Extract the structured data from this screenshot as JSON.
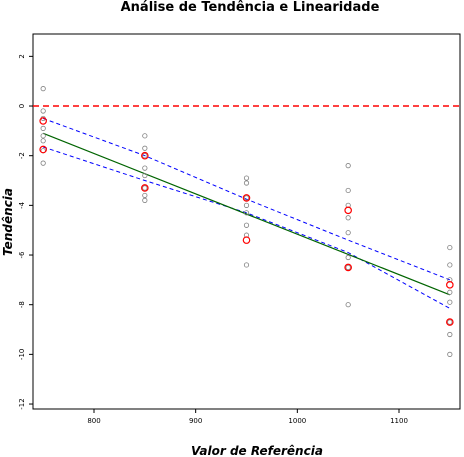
{
  "chart_data": {
    "type": "scatter",
    "title": "Análise de Tendência e Linearidade",
    "xlabel": "Valor de Referência",
    "ylabel": "Tendência",
    "xlim": [
      740,
      1160
    ],
    "ylim": [
      -12.2,
      2.9
    ],
    "x_ticks": [
      800,
      900,
      1000,
      1100
    ],
    "y_ticks": [
      2,
      0,
      -2,
      -4,
      -6,
      -8,
      -10,
      -12
    ],
    "x_tick_labels": [
      "800",
      "900",
      "1000",
      "1100"
    ],
    "y_tick_labels": [
      "2",
      "0",
      "-2",
      "-4",
      "-6",
      "-8",
      "-10",
      "-12"
    ],
    "grid": false,
    "reference_line": {
      "y": 0,
      "color": "#ff0000",
      "style": "dashed"
    },
    "fit_line": {
      "x": [
        750,
        1150
      ],
      "y": [
        -1.1,
        -7.6
      ],
      "color": "#006400"
    },
    "confidence_band": {
      "color": "#0000ff",
      "style": "dashed",
      "x": [
        750,
        850,
        950,
        1050,
        1150
      ],
      "upper": [
        -0.5,
        -2.0,
        -3.75,
        -5.4,
        -7.0
      ],
      "lower": [
        -1.65,
        -3.0,
        -4.3,
        -5.9,
        -8.15
      ]
    },
    "series": [
      {
        "color": "#808080",
        "marker": "circle",
        "points": [
          [
            750,
            0.7
          ],
          [
            750,
            -0.2
          ],
          [
            750,
            -0.5
          ],
          [
            750,
            -0.9
          ],
          [
            750,
            -1.2
          ],
          [
            750,
            -1.4
          ],
          [
            750,
            -1.8
          ],
          [
            750,
            -2.3
          ],
          [
            850,
            -1.2
          ],
          [
            850,
            -1.7
          ],
          [
            850,
            -2.0
          ],
          [
            850,
            -2.5
          ],
          [
            850,
            -2.8
          ],
          [
            850,
            -3.3
          ],
          [
            850,
            -3.6
          ],
          [
            850,
            -3.8
          ],
          [
            950,
            -2.9
          ],
          [
            950,
            -3.1
          ],
          [
            950,
            -3.7
          ],
          [
            950,
            -4.0
          ],
          [
            950,
            -4.3
          ],
          [
            950,
            -4.8
          ],
          [
            950,
            -5.2
          ],
          [
            950,
            -6.4
          ],
          [
            1050,
            -2.4
          ],
          [
            1050,
            -3.4
          ],
          [
            1050,
            -4.0
          ],
          [
            1050,
            -4.5
          ],
          [
            1050,
            -5.1
          ],
          [
            1050,
            -6.1
          ],
          [
            1050,
            -6.5
          ],
          [
            1050,
            -8.0
          ],
          [
            1150,
            -5.7
          ],
          [
            1150,
            -6.4
          ],
          [
            1150,
            -7.0
          ],
          [
            1150,
            -7.5
          ],
          [
            1150,
            -7.9
          ],
          [
            1150,
            -8.7
          ],
          [
            1150,
            -9.2
          ],
          [
            1150,
            -10.0
          ]
        ]
      },
      {
        "color": "#ff0000",
        "marker": "circle",
        "points": [
          [
            750,
            -0.6
          ],
          [
            750,
            -1.75
          ],
          [
            850,
            -2.0
          ],
          [
            850,
            -3.3
          ],
          [
            950,
            -3.7
          ],
          [
            950,
            -5.4
          ],
          [
            1050,
            -4.2
          ],
          [
            1050,
            -6.5
          ],
          [
            1150,
            -7.2
          ],
          [
            1150,
            -8.7
          ]
        ]
      }
    ]
  }
}
